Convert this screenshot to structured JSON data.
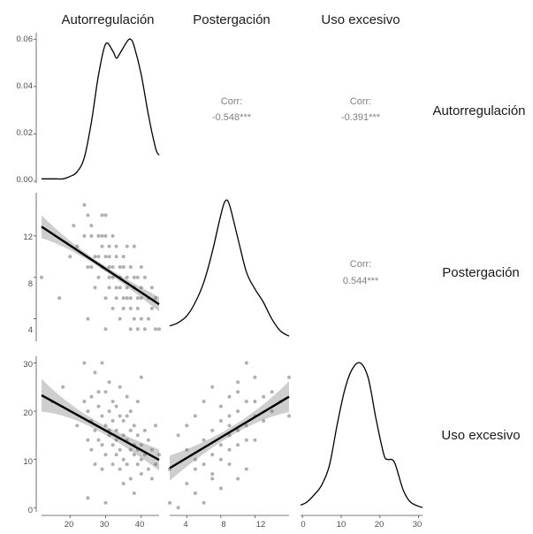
{
  "chart_data": {
    "type": "scatter",
    "variables": [
      "Autorregulación",
      "Postergación",
      "Uso  excesivo"
    ],
    "ticks": {
      "density_y": [
        "0.00",
        "0.02",
        "0.04",
        "0.06"
      ],
      "postergacion_y": [
        "4",
        "8",
        "12"
      ],
      "uso_y": [
        "0",
        "10",
        "20",
        "30"
      ],
      "autorregulacion_x": [
        "20",
        "30",
        "40"
      ],
      "postergacion_x": [
        "4",
        "8",
        "12"
      ],
      "uso_x": [
        "0",
        "10",
        "20",
        "30"
      ]
    },
    "axis_ranges": {
      "autorregulacion": [
        12,
        45
      ],
      "postergacion": [
        2,
        16
      ],
      "uso_excesivo": [
        -0.5,
        31
      ],
      "density_autorregulacion": [
        0,
        0.062
      ]
    },
    "correlations": [
      {
        "label": "Corr:",
        "value": "-0.548***",
        "pair": [
          "Autorregulación",
          "Postergación"
        ]
      },
      {
        "label": "Corr:",
        "value": "-0.391***",
        "pair": [
          "Autorregulación",
          "Uso  excesivo"
        ]
      },
      {
        "label": "Corr:",
        "value": "0.544***",
        "pair": [
          "Postergación",
          "Uso  excesivo"
        ]
      }
    ],
    "densities": [
      {
        "variable": "Autorregulación",
        "x": [
          12,
          14,
          16,
          18,
          20,
          22,
          24,
          26,
          28,
          30,
          32,
          33,
          34,
          36,
          37,
          38,
          40,
          42,
          44,
          45
        ],
        "y": [
          0.001,
          0.001,
          0.001,
          0.001,
          0.002,
          0.004,
          0.01,
          0.025,
          0.045,
          0.058,
          0.055,
          0.052,
          0.054,
          0.059,
          0.06,
          0.057,
          0.045,
          0.028,
          0.014,
          0.011
        ]
      },
      {
        "variable": "Postergación",
        "x": [
          2,
          3,
          4,
          5,
          6,
          7,
          8,
          8.5,
          9,
          10,
          11,
          12,
          13,
          14,
          15,
          16
        ],
        "y": [
          0.08,
          0.1,
          0.14,
          0.22,
          0.34,
          0.52,
          0.74,
          0.82,
          0.8,
          0.6,
          0.4,
          0.3,
          0.22,
          0.12,
          0.05,
          0.02
        ]
      },
      {
        "variable": "Uso  excesivo",
        "x": [
          -0.5,
          1,
          3,
          5,
          7,
          9,
          11,
          13,
          15,
          17,
          19,
          21,
          22,
          23,
          24,
          26,
          28,
          31
        ],
        "y": [
          0.01,
          0.015,
          0.03,
          0.05,
          0.09,
          0.17,
          0.24,
          0.28,
          0.29,
          0.26,
          0.18,
          0.11,
          0.1,
          0.1,
          0.09,
          0.04,
          0.015,
          0.005
        ]
      }
    ],
    "scatter": [
      {
        "x_var": "Autorregulación",
        "y_var": "Postergación",
        "points": [
          [
            12,
            8
          ],
          [
            17,
            6
          ],
          [
            20,
            10
          ],
          [
            21,
            13
          ],
          [
            22,
            11
          ],
          [
            24,
            15
          ],
          [
            24,
            12
          ],
          [
            25,
            14
          ],
          [
            25,
            9
          ],
          [
            25,
            4
          ],
          [
            26,
            12
          ],
          [
            26,
            9
          ],
          [
            26,
            13
          ],
          [
            27,
            7
          ],
          [
            27,
            10
          ],
          [
            28,
            12
          ],
          [
            28,
            8
          ],
          [
            28,
            10
          ],
          [
            29,
            12
          ],
          [
            29,
            14
          ],
          [
            29,
            11
          ],
          [
            29,
            9
          ],
          [
            30,
            6
          ],
          [
            30,
            3
          ],
          [
            30,
            10
          ],
          [
            30,
            12
          ],
          [
            30,
            14
          ],
          [
            31,
            9
          ],
          [
            31,
            7
          ],
          [
            31,
            10
          ],
          [
            31,
            11
          ],
          [
            31,
            8
          ],
          [
            32,
            12
          ],
          [
            32,
            9
          ],
          [
            32,
            8
          ],
          [
            32,
            5
          ],
          [
            33,
            10
          ],
          [
            33,
            7
          ],
          [
            33,
            6
          ],
          [
            33,
            11
          ],
          [
            34,
            9
          ],
          [
            34,
            8
          ],
          [
            34,
            7
          ],
          [
            34,
            4
          ],
          [
            35,
            10
          ],
          [
            35,
            6
          ],
          [
            35,
            5
          ],
          [
            35,
            9
          ],
          [
            36,
            8
          ],
          [
            36,
            6
          ],
          [
            36,
            7
          ],
          [
            36,
            11
          ],
          [
            37,
            6
          ],
          [
            37,
            5
          ],
          [
            37,
            9
          ],
          [
            37,
            3
          ],
          [
            38,
            8
          ],
          [
            38,
            4
          ],
          [
            38,
            7
          ],
          [
            38,
            11
          ],
          [
            39,
            6
          ],
          [
            39,
            5
          ],
          [
            39,
            3
          ],
          [
            39,
            8
          ],
          [
            40,
            7
          ],
          [
            40,
            4
          ],
          [
            40,
            6
          ],
          [
            40,
            9
          ],
          [
            41,
            3
          ],
          [
            41,
            8
          ],
          [
            42,
            4
          ],
          [
            42,
            6
          ],
          [
            43,
            5
          ],
          [
            43,
            7
          ],
          [
            44,
            3
          ],
          [
            44,
            6
          ],
          [
            45,
            3
          ]
        ],
        "fit": {
          "x": [
            12,
            45
          ],
          "y": [
            12.9,
            5.4
          ],
          "ci_halfwidth_ends": [
            1.1,
            0.7
          ],
          "ci_halfwidth_mid": 0.25
        }
      },
      {
        "x_var": "Autorregulación",
        "y_var": "Uso  excesivo",
        "points": [
          [
            15,
            22
          ],
          [
            18,
            25
          ],
          [
            22,
            17
          ],
          [
            24,
            30
          ],
          [
            24,
            22
          ],
          [
            25,
            14
          ],
          [
            25,
            20
          ],
          [
            25,
            2
          ],
          [
            26,
            18
          ],
          [
            26,
            12
          ],
          [
            26,
            23
          ],
          [
            27,
            28
          ],
          [
            27,
            16
          ],
          [
            27,
            9
          ],
          [
            28,
            21
          ],
          [
            28,
            24
          ],
          [
            28,
            14
          ],
          [
            29,
            30
          ],
          [
            29,
            19
          ],
          [
            29,
            13
          ],
          [
            29,
            8
          ],
          [
            30,
            17
          ],
          [
            30,
            24
          ],
          [
            30,
            11
          ],
          [
            30,
            1
          ],
          [
            31,
            16
          ],
          [
            31,
            20
          ],
          [
            31,
            15
          ],
          [
            31,
            26
          ],
          [
            32,
            13
          ],
          [
            32,
            18
          ],
          [
            32,
            22
          ],
          [
            32,
            9
          ],
          [
            33,
            16
          ],
          [
            33,
            11
          ],
          [
            33,
            21
          ],
          [
            33,
            14
          ],
          [
            34,
            12
          ],
          [
            34,
            19
          ],
          [
            34,
            25
          ],
          [
            34,
            8
          ],
          [
            35,
            15
          ],
          [
            35,
            10
          ],
          [
            35,
            18
          ],
          [
            35,
            5
          ],
          [
            36,
            14
          ],
          [
            36,
            9
          ],
          [
            36,
            19
          ],
          [
            36,
            23
          ],
          [
            37,
            12
          ],
          [
            37,
            16
          ],
          [
            37,
            6
          ],
          [
            37,
            20
          ],
          [
            38,
            11
          ],
          [
            38,
            17
          ],
          [
            38,
            13
          ],
          [
            38,
            3
          ],
          [
            39,
            9
          ],
          [
            39,
            15
          ],
          [
            39,
            12
          ],
          [
            39,
            22
          ],
          [
            40,
            13
          ],
          [
            40,
            10
          ],
          [
            40,
            7
          ],
          [
            40,
            27
          ],
          [
            41,
            11
          ],
          [
            41,
            16
          ],
          [
            42,
            8
          ],
          [
            42,
            14
          ],
          [
            43,
            12
          ],
          [
            43,
            6
          ],
          [
            44,
            9
          ],
          [
            44,
            17
          ],
          [
            45,
            11
          ]
        ],
        "fit": {
          "x": [
            12,
            45
          ],
          "y": [
            23.3,
            9.9
          ],
          "ci_halfwidth_ends": [
            3.4,
            2.2
          ],
          "ci_halfwidth_mid": 0.9
        }
      },
      {
        "x_var": "Postergación",
        "y_var": "Uso  excesivo",
        "points": [
          [
            2,
            1
          ],
          [
            2,
            8
          ],
          [
            3,
            0
          ],
          [
            3,
            15
          ],
          [
            4,
            5
          ],
          [
            4,
            12
          ],
          [
            4,
            17
          ],
          [
            5,
            3
          ],
          [
            5,
            10
          ],
          [
            5,
            19
          ],
          [
            5,
            8
          ],
          [
            6,
            1
          ],
          [
            6,
            14
          ],
          [
            6,
            22
          ],
          [
            6,
            9
          ],
          [
            7,
            7
          ],
          [
            7,
            11
          ],
          [
            7,
            16
          ],
          [
            7,
            6
          ],
          [
            7,
            25
          ],
          [
            8,
            4
          ],
          [
            8,
            13
          ],
          [
            8,
            18
          ],
          [
            8,
            10
          ],
          [
            8,
            21
          ],
          [
            9,
            9
          ],
          [
            9,
            15
          ],
          [
            9,
            19
          ],
          [
            9,
            12
          ],
          [
            9,
            23
          ],
          [
            9,
            17
          ],
          [
            10,
            13
          ],
          [
            10,
            24
          ],
          [
            10,
            16
          ],
          [
            10,
            20
          ],
          [
            10,
            6
          ],
          [
            10,
            26
          ],
          [
            11,
            17
          ],
          [
            11,
            22
          ],
          [
            11,
            14
          ],
          [
            11,
            8
          ],
          [
            11,
            30
          ],
          [
            12,
            19
          ],
          [
            12,
            27
          ],
          [
            12,
            14
          ],
          [
            12,
            22
          ],
          [
            13,
            18
          ],
          [
            13,
            23
          ],
          [
            14,
            24
          ],
          [
            14,
            20
          ],
          [
            15,
            22
          ],
          [
            16,
            27
          ],
          [
            16,
            19
          ]
        ],
        "fit": {
          "x": [
            2,
            16
          ],
          "y": [
            8.2,
            23.0
          ],
          "ci_halfwidth_ends": [
            2.6,
            3.2
          ],
          "ci_halfwidth_mid": 0.9
        }
      }
    ],
    "colors": {
      "points": "#6e6e6e",
      "fit": "#000000",
      "ci": "#bdbdbd",
      "density": "#000000",
      "corr_text": "#808080"
    }
  }
}
